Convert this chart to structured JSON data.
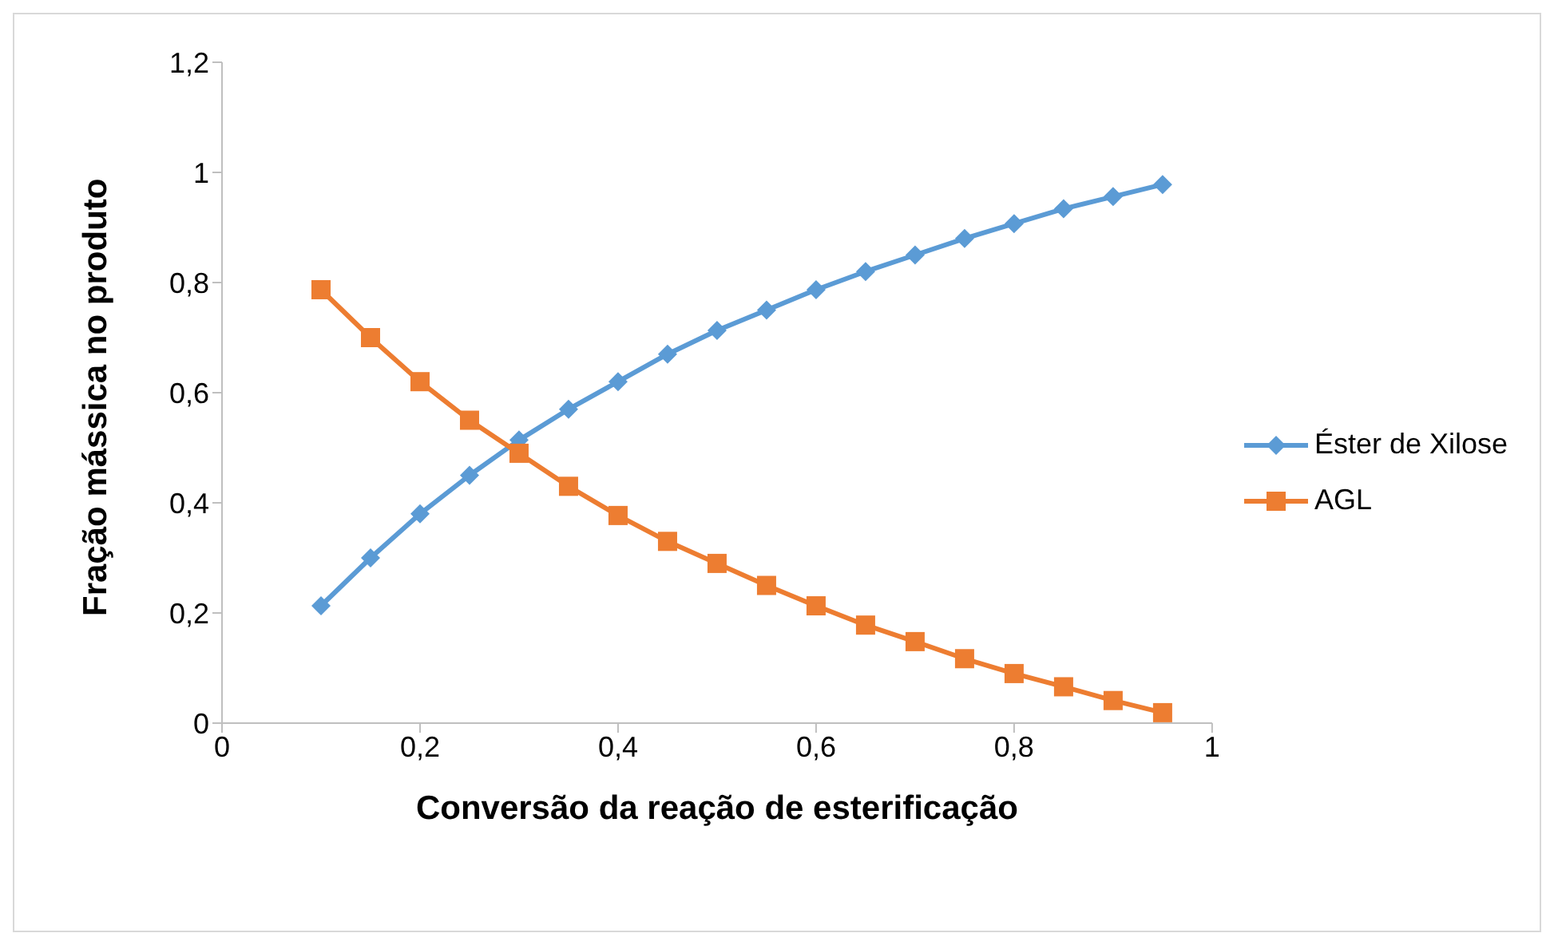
{
  "chart_data": {
    "type": "line",
    "xlabel": "Conversão da reação de esterificação",
    "ylabel": "Fração mássica no produto",
    "x": [
      0.1,
      0.15,
      0.2,
      0.25,
      0.3,
      0.35,
      0.4,
      0.45,
      0.5,
      0.55,
      0.6,
      0.65,
      0.7,
      0.75,
      0.8,
      0.85,
      0.9,
      0.95
    ],
    "series": [
      {
        "name": "Éster de Xilose",
        "color": "#5b9bd5",
        "marker": "diamond",
        "values": [
          0.213,
          0.3,
          0.38,
          0.45,
          0.514,
          0.57,
          0.62,
          0.67,
          0.713,
          0.75,
          0.787,
          0.82,
          0.85,
          0.88,
          0.907,
          0.934,
          0.956,
          0.978
        ]
      },
      {
        "name": "AGL",
        "color": "#ed7d31",
        "marker": "square",
        "values": [
          0.787,
          0.7,
          0.62,
          0.55,
          0.49,
          0.43,
          0.377,
          0.33,
          0.29,
          0.25,
          0.213,
          0.178,
          0.148,
          0.117,
          0.09,
          0.066,
          0.041,
          0.019
        ]
      }
    ],
    "xlim": [
      0,
      1
    ],
    "xticks": [
      0,
      {
        "value": 0.2,
        "label": "0,2"
      },
      {
        "value": 0.4,
        "label": "0,4"
      },
      {
        "value": 0.6,
        "label": "0,6"
      },
      {
        "value": 0.8,
        "label": "0,8"
      },
      1
    ],
    "ylim": [
      0,
      1.2
    ],
    "yticks": [
      0,
      {
        "value": 0.2,
        "label": "0,2"
      },
      {
        "value": 0.4,
        "label": "0,4"
      },
      {
        "value": 0.6,
        "label": "0,6"
      },
      {
        "value": 0.8,
        "label": "0,8"
      },
      1,
      {
        "value": 1.2,
        "label": "1,2"
      }
    ],
    "grid": false,
    "legend": "right",
    "line_style": "solid"
  }
}
